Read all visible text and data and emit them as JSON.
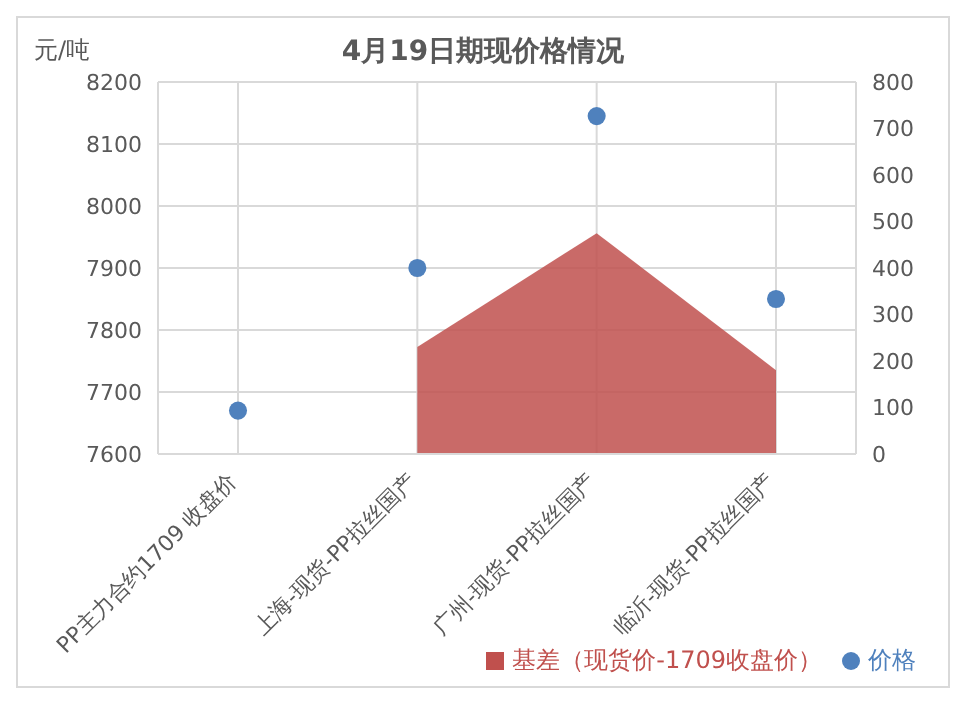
{
  "chart_data": {
    "type": "scatter",
    "title": "4月19日期现价格情况",
    "ylabel": "元/吨",
    "categories": [
      "PP主力合约1709 收盘价",
      "上海-现货-PP拉丝国产",
      "广州-现货-PP拉丝国产",
      "临沂-现货-PP拉丝国产"
    ],
    "series": [
      {
        "name": "基差（现货价-1709收盘价）",
        "type": "area",
        "axis": "y2",
        "color": "#c0504d",
        "values": [
          null,
          230,
          475,
          180
        ]
      },
      {
        "name": "价格",
        "color": "#4f81bd",
        "marker": "circle",
        "values": [
          7670,
          7900,
          8145,
          7850
        ]
      }
    ],
    "ylim": [
      7600,
      8200
    ],
    "yticks": [
      7600,
      7700,
      7800,
      7900,
      8000,
      8100,
      8200
    ],
    "y2lim": [
      0,
      800
    ],
    "y2ticks": [
      0,
      100,
      200,
      300,
      400,
      500,
      600,
      700,
      800
    ],
    "grid": true,
    "legend": "bottom right"
  }
}
